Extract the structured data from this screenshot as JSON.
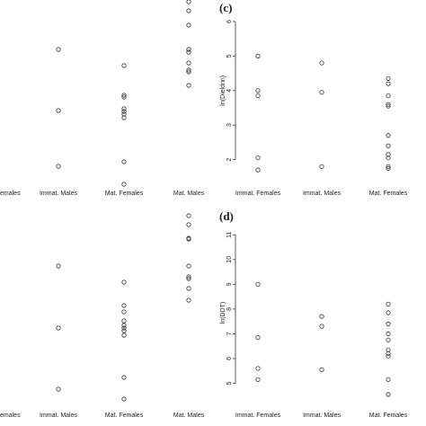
{
  "chart_data": [
    {
      "type": "strip",
      "categories": [
        "emales",
        "Immat. Males",
        "Mat. Females",
        "Mat. Males"
      ],
      "values": [
        [],
        [
          145,
          77,
          15
        ],
        [
          127,
          94,
          92,
          79,
          76,
          73,
          69,
          20,
          -5
        ],
        [
          198,
          188,
          172,
          145,
          142,
          130,
          122,
          120,
          105
        ]
      ],
      "ylim": [
        -10,
        200
      ]
    },
    {
      "type": "strip",
      "title": "(c)",
      "y_label": "ln(Dieldrin)",
      "categories": [
        "Immat. Females",
        "Immat. Males",
        "Mat. Females"
      ],
      "values": [
        [
          5.0,
          4.0,
          3.85,
          2.05,
          1.7
        ],
        [
          4.8,
          3.95,
          1.8
        ],
        [
          4.35,
          4.2,
          3.85,
          3.6,
          3.55,
          2.7,
          2.4,
          2.15,
          2.05,
          1.8,
          1.75
        ]
      ],
      "ylim": [
        1.6,
        6.4
      ],
      "yticks": [
        2,
        3,
        4,
        5,
        6
      ]
    },
    {
      "type": "strip",
      "categories": [
        "emales",
        "Immat. Males",
        "Mat. Females",
        "Mat. Males"
      ],
      "values": [
        [],
        [
          154,
          85,
          17
        ],
        [
          136,
          110,
          103,
          93,
          88,
          85,
          82,
          77,
          30,
          6
        ],
        [
          210,
          200,
          185,
          184,
          154,
          142,
          140,
          129,
          116
        ]
      ],
      "ylim": [
        0,
        215
      ]
    },
    {
      "type": "strip",
      "title": "(d)",
      "y_label": "ln(DDT)",
      "categories": [
        "Immat. Females",
        "Immat. Males",
        "Mat. Females"
      ],
      "values": [
        [
          9.0,
          6.85,
          5.6,
          5.15
        ],
        [
          7.7,
          7.3,
          5.55
        ],
        [
          8.2,
          7.85,
          7.4,
          7.0,
          6.75,
          6.35,
          6.2,
          6.1,
          5.15,
          4.55
        ]
      ],
      "ylim": [
        4.4,
        11.3
      ],
      "yticks": [
        5,
        6,
        7,
        8,
        9,
        10,
        11
      ]
    }
  ]
}
